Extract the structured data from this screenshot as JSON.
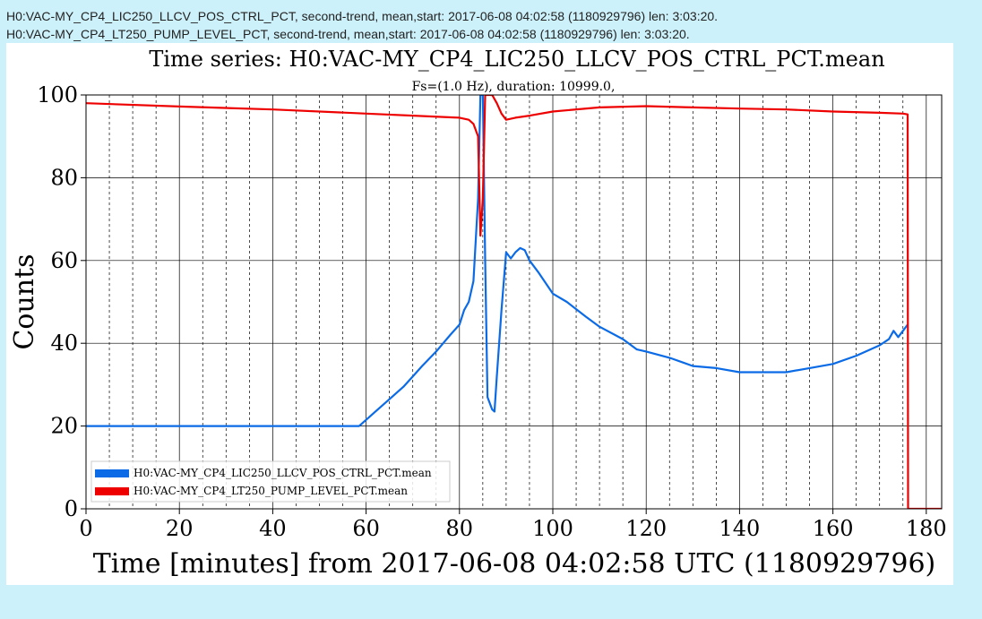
{
  "header": {
    "lines": [
      "H0:VAC-MY_CP4_LIC250_LLCV_POS_CTRL_PCT, second-trend, mean,start: 2017-06-08 04:02:58 (1180929796) len: 3:03:20.",
      "H0:VAC-MY_CP4_LT250_PUMP_LEVEL_PCT, second-trend, mean,start: 2017-06-08 04:02:58 (1180929796) len: 3:03:20."
    ]
  },
  "colors": {
    "background": "#cdf1fb",
    "panel": "#ffffff",
    "series0": "#0b6be6",
    "series1": "#ee0000"
  },
  "chart_data": {
    "type": "line",
    "title": "Time series:  H0:VAC-MY_CP4_LIC250_LLCV_POS_CTRL_PCT.mean",
    "subtitle": "Fs=(1.0 Hz),  duration:  10999.0,",
    "xlabel": "Time [minutes] from 2017-06-08 04:02:58 UTC (1180929796)",
    "ylabel": "Counts",
    "xlim": [
      0,
      183.3
    ],
    "ylim": [
      0,
      100
    ],
    "xticks": [
      0,
      20,
      40,
      60,
      80,
      100,
      120,
      140,
      160,
      180
    ],
    "yticks": [
      0,
      20,
      40,
      60,
      80,
      100
    ],
    "minor_x_grid": true,
    "grid": true,
    "legend_position": "lower-left",
    "series": [
      {
        "name": "H0:VAC-MY_CP4_LIC250_LLCV_POS_CTRL_PCT.mean",
        "x": [
          0,
          10,
          20,
          30,
          40,
          50,
          58.5,
          59,
          62,
          65,
          68,
          70,
          72,
          75,
          78,
          80,
          81,
          82,
          83,
          84,
          84.5,
          85,
          85.5,
          86,
          87,
          87.5,
          88,
          89,
          90,
          91,
          92,
          93,
          94,
          95,
          97,
          100,
          103,
          107,
          110,
          115,
          118,
          120,
          125,
          130,
          135,
          140,
          145,
          150,
          155,
          160,
          165,
          170,
          172,
          173,
          174,
          175,
          176
        ],
        "y": [
          20,
          20,
          20,
          20,
          20,
          20,
          20,
          20.5,
          23.5,
          26.5,
          29.5,
          32,
          34.5,
          38,
          42,
          44.5,
          48,
          50,
          55,
          75,
          100,
          100,
          60,
          27,
          24,
          23.5,
          32,
          48,
          62,
          60.5,
          62,
          63,
          62.5,
          60,
          57,
          52,
          50,
          46.5,
          44,
          41,
          38.5,
          38,
          36.5,
          34.5,
          34,
          33,
          33,
          33,
          34,
          35,
          37,
          39.5,
          41,
          43,
          41.5,
          43,
          44.5
        ]
      },
      {
        "name": "H0:VAC-MY_CP4_LT250_PUMP_LEVEL_PCT.mean",
        "x": [
          0,
          20,
          40,
          60,
          80,
          82,
          83,
          84,
          84.5,
          85,
          85.5,
          86,
          87,
          88,
          89,
          90,
          92,
          95,
          100,
          110,
          120,
          130,
          140,
          150,
          160,
          170,
          175,
          176,
          176.1,
          176.2,
          183.3
        ],
        "y": [
          98,
          97.2,
          96.5,
          95.5,
          94.5,
          94,
          93,
          90,
          66,
          75,
          100,
          100,
          100,
          98,
          95.5,
          94,
          94.5,
          95,
          96,
          97,
          97.3,
          97,
          96.7,
          96.5,
          96,
          95.7,
          95.5,
          95.3,
          0,
          0,
          0
        ]
      }
    ]
  }
}
